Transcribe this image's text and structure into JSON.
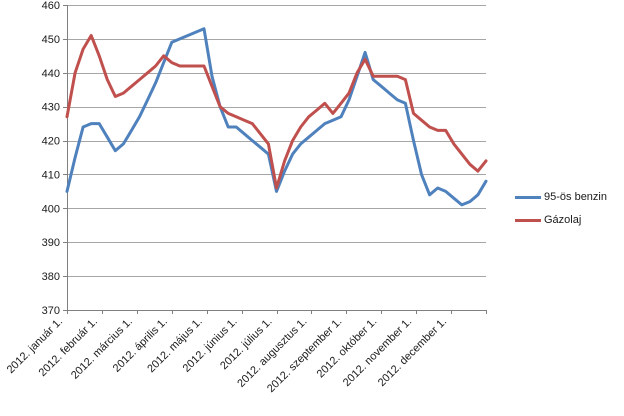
{
  "chart_data": {
    "type": "line",
    "grid": true,
    "legend_position": "right",
    "y_axis": {
      "min": 370,
      "max": 460,
      "ticks": [
        370,
        380,
        390,
        400,
        410,
        420,
        430,
        440,
        450,
        460
      ]
    },
    "x_axis": {
      "tick_labels": [
        "2012. január 1.",
        "2012. február 1.",
        "2012. március 1.",
        "2012. április 1.",
        "2012. május 1.",
        "2012. június 1.",
        "2012. július 1.",
        "2012. augusztus 1.",
        "2012. szeptember 1.",
        "2012. október 1.",
        "2012. november 1.",
        "2012. december 1."
      ]
    },
    "series": [
      {
        "name": "95-ös benzin",
        "color": "#4F81BD",
        "values": [
          405,
          415,
          424,
          425,
          425,
          421,
          417,
          419,
          423,
          427,
          432,
          437,
          443,
          449,
          450,
          451,
          452,
          453,
          439,
          430,
          424,
          424,
          422,
          420,
          418,
          416,
          405,
          411,
          416,
          419,
          421,
          423,
          425,
          426,
          427,
          432,
          439,
          446,
          438,
          436,
          434,
          432,
          431,
          420,
          410,
          404,
          406,
          405,
          403,
          401,
          402,
          404,
          408
        ]
      },
      {
        "name": "Gázolaj",
        "color": "#C0504D",
        "values": [
          427,
          440,
          447,
          451,
          445,
          438,
          433,
          434,
          436,
          438,
          440,
          442,
          445,
          443,
          442,
          442,
          442,
          442,
          436,
          430,
          428,
          427,
          426,
          425,
          422,
          419,
          406,
          414,
          420,
          424,
          427,
          429,
          431,
          428,
          431,
          434,
          440,
          444,
          439,
          439,
          439,
          439,
          438,
          428,
          426,
          424,
          423,
          423,
          419,
          416,
          413,
          411,
          414
        ]
      }
    ]
  },
  "colors": {
    "background": "#FFFFFF",
    "gridline": "#A6A6A6",
    "axis": "#808080",
    "tick_text": "#1A1A1A"
  }
}
